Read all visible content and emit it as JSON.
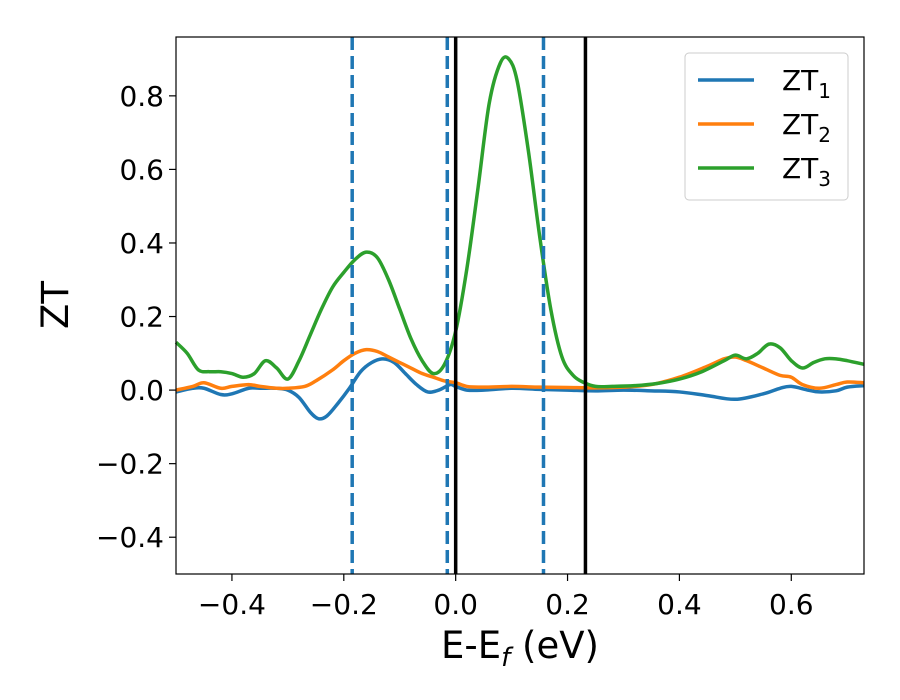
{
  "chart_data": {
    "type": "line",
    "xlabel": {
      "main": "E-E",
      "sub": "f",
      "suffix": " (eV)"
    },
    "ylabel": "ZT",
    "xlim": [
      -0.5,
      0.73
    ],
    "ylim": [
      -0.5,
      0.96
    ],
    "xticks": [
      -0.4,
      -0.2,
      0.0,
      0.2,
      0.4,
      0.6
    ],
    "xtick_labels": [
      "−0.4",
      "−0.2",
      "0.0",
      "0.2",
      "0.4",
      "0.6"
    ],
    "yticks": [
      -0.4,
      -0.2,
      0.0,
      0.2,
      0.4,
      0.6,
      0.8
    ],
    "ytick_labels": [
      "−0.4",
      "−0.2",
      "0.0",
      "0.2",
      "0.4",
      "0.6",
      "0.8"
    ],
    "legend_position": "top-right",
    "grid": false,
    "series": [
      {
        "name": "ZT",
        "name_sub": "1",
        "color": "#1f77b4",
        "x": [
          -0.5,
          -0.47,
          -0.45,
          -0.42,
          -0.4,
          -0.37,
          -0.35,
          -0.32,
          -0.3,
          -0.28,
          -0.26,
          -0.245,
          -0.23,
          -0.21,
          -0.19,
          -0.17,
          -0.15,
          -0.13,
          -0.11,
          -0.09,
          -0.07,
          -0.05,
          -0.03,
          -0.01,
          0.0,
          0.02,
          0.05,
          0.1,
          0.15,
          0.2,
          0.25,
          0.3,
          0.35,
          0.4,
          0.45,
          0.5,
          0.55,
          0.58,
          0.6,
          0.63,
          0.65,
          0.68,
          0.7,
          0.73
        ],
        "y": [
          -0.005,
          0.005,
          0.005,
          -0.012,
          -0.01,
          0.005,
          0.005,
          0.005,
          0.0,
          -0.02,
          -0.06,
          -0.078,
          -0.07,
          -0.035,
          0.005,
          0.05,
          0.075,
          0.085,
          0.075,
          0.045,
          0.015,
          -0.005,
          0.0,
          0.015,
          0.01,
          0.0,
          0.0,
          0.005,
          0.002,
          0.0,
          -0.002,
          0.0,
          -0.002,
          -0.005,
          -0.015,
          -0.025,
          -0.01,
          0.005,
          0.01,
          0.0,
          -0.005,
          -0.002,
          0.008,
          0.012
        ]
      },
      {
        "name": "ZT",
        "name_sub": "2",
        "color": "#ff7f0e",
        "x": [
          -0.5,
          -0.47,
          -0.45,
          -0.42,
          -0.4,
          -0.37,
          -0.35,
          -0.32,
          -0.3,
          -0.27,
          -0.25,
          -0.22,
          -0.2,
          -0.18,
          -0.16,
          -0.14,
          -0.12,
          -0.1,
          -0.08,
          -0.06,
          -0.04,
          -0.02,
          0.0,
          0.02,
          0.05,
          0.1,
          0.15,
          0.2,
          0.25,
          0.3,
          0.35,
          0.4,
          0.45,
          0.48,
          0.5,
          0.52,
          0.55,
          0.58,
          0.6,
          0.62,
          0.65,
          0.68,
          0.7,
          0.73
        ],
        "y": [
          0.0,
          0.01,
          0.02,
          0.005,
          0.01,
          0.015,
          0.01,
          0.005,
          0.005,
          0.01,
          0.025,
          0.055,
          0.08,
          0.1,
          0.11,
          0.105,
          0.09,
          0.075,
          0.06,
          0.045,
          0.035,
          0.025,
          0.02,
          0.01,
          0.008,
          0.01,
          0.008,
          0.007,
          0.006,
          0.008,
          0.015,
          0.035,
          0.065,
          0.085,
          0.09,
          0.08,
          0.06,
          0.04,
          0.035,
          0.015,
          0.005,
          0.015,
          0.022,
          0.02
        ]
      },
      {
        "name": "ZT",
        "name_sub": "3",
        "color": "#2ca02c",
        "x": [
          -0.5,
          -0.48,
          -0.46,
          -0.44,
          -0.42,
          -0.4,
          -0.38,
          -0.36,
          -0.34,
          -0.32,
          -0.3,
          -0.28,
          -0.26,
          -0.24,
          -0.22,
          -0.2,
          -0.18,
          -0.16,
          -0.14,
          -0.12,
          -0.1,
          -0.08,
          -0.06,
          -0.04,
          -0.02,
          0.0,
          0.02,
          0.04,
          0.06,
          0.08,
          0.095,
          0.11,
          0.13,
          0.15,
          0.17,
          0.19,
          0.21,
          0.23,
          0.25,
          0.28,
          0.32,
          0.36,
          0.4,
          0.44,
          0.48,
          0.5,
          0.52,
          0.54,
          0.56,
          0.58,
          0.6,
          0.62,
          0.64,
          0.66,
          0.68,
          0.7,
          0.73
        ],
        "y": [
          0.13,
          0.1,
          0.055,
          0.05,
          0.05,
          0.045,
          0.035,
          0.045,
          0.08,
          0.06,
          0.03,
          0.08,
          0.15,
          0.22,
          0.28,
          0.32,
          0.355,
          0.375,
          0.36,
          0.3,
          0.22,
          0.14,
          0.08,
          0.045,
          0.07,
          0.16,
          0.33,
          0.55,
          0.78,
          0.89,
          0.9,
          0.84,
          0.65,
          0.42,
          0.22,
          0.09,
          0.04,
          0.02,
          0.01,
          0.01,
          0.012,
          0.018,
          0.03,
          0.05,
          0.08,
          0.095,
          0.085,
          0.1,
          0.125,
          0.115,
          0.08,
          0.06,
          0.075,
          0.085,
          0.085,
          0.08,
          0.07
        ]
      }
    ],
    "vlines": [
      {
        "x": -0.185,
        "color": "#1f77b4",
        "style": "dashed"
      },
      {
        "x": -0.015,
        "color": "#1f77b4",
        "style": "dashed"
      },
      {
        "x": 0.0,
        "color": "#000000",
        "style": "solid"
      },
      {
        "x": 0.157,
        "color": "#1f77b4",
        "style": "dashed"
      },
      {
        "x": 0.232,
        "color": "#000000",
        "style": "solid"
      }
    ]
  }
}
